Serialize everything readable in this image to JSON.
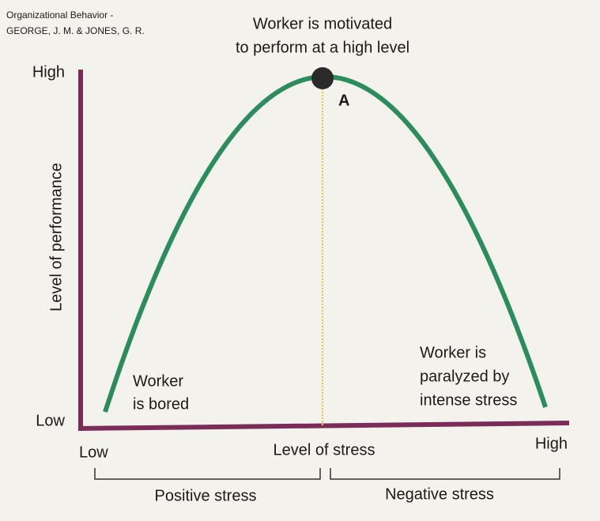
{
  "source": {
    "lines": [
      "Organizational Behavior -",
      "GEORGE, J. M. & JONES, G. R."
    ]
  },
  "peak": {
    "lines": [
      "Worker is motivated",
      "to perform at a high level"
    ],
    "point_label": "A"
  },
  "y_axis": {
    "title": "Level of performance",
    "high": "High",
    "low": "Low"
  },
  "x_axis": {
    "title": "Level of stress",
    "low": "Low",
    "high": "High"
  },
  "left_note": {
    "lines": [
      "Worker",
      "is bored"
    ]
  },
  "right_note": {
    "lines": [
      "Worker is",
      "paralyzed by",
      "intense stress"
    ]
  },
  "ranges": {
    "left": "Positive stress",
    "right": "Negative stress"
  }
}
